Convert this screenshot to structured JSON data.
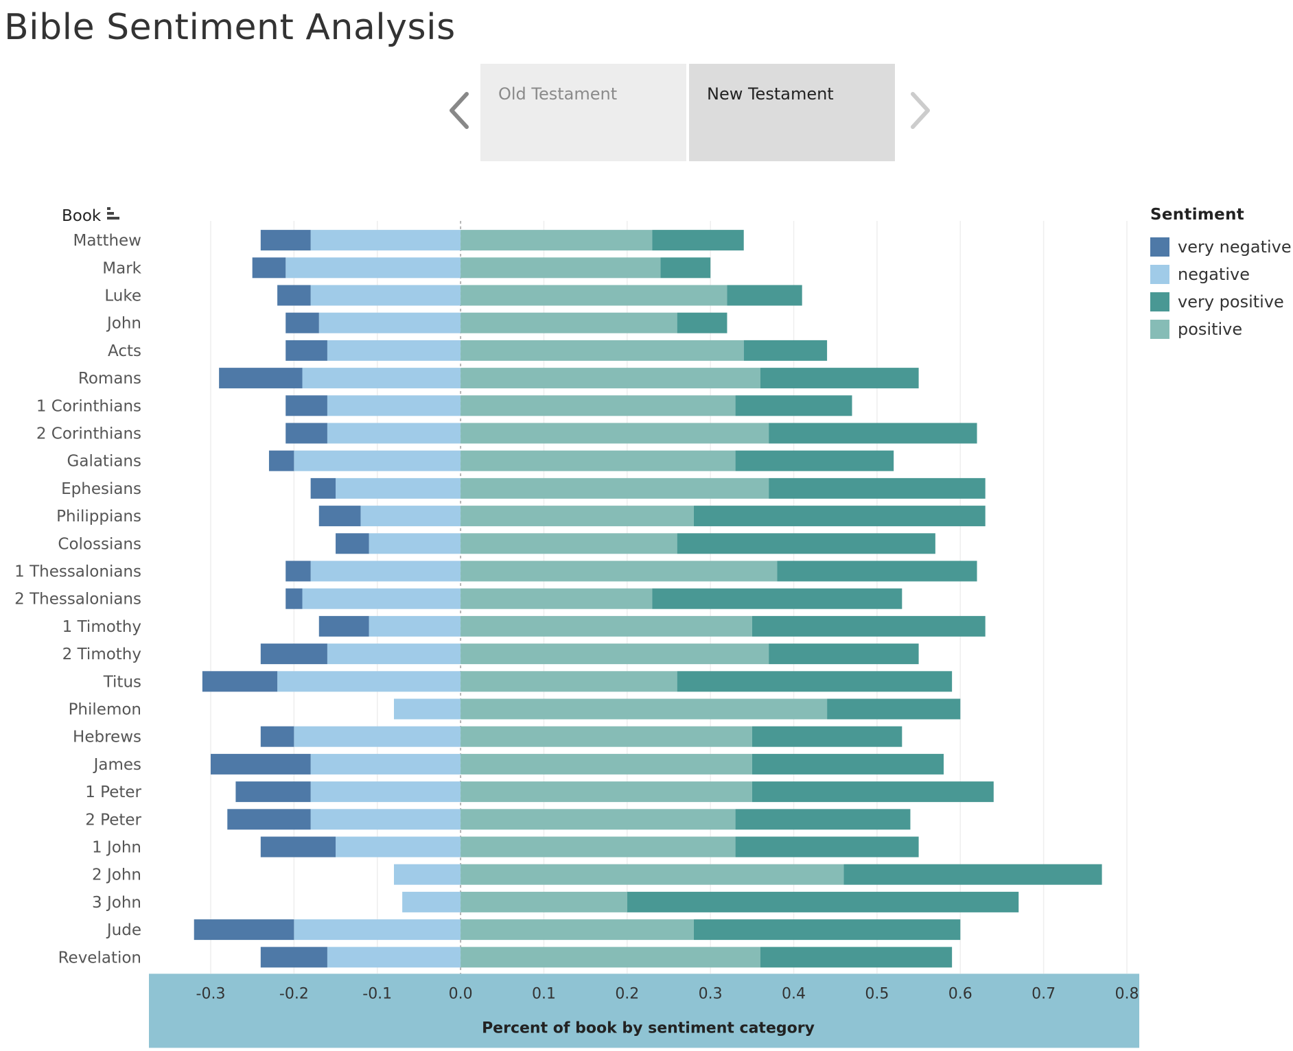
{
  "page": {
    "title": "Bible Sentiment Analysis"
  },
  "tabs": {
    "prev_icon": "chevron-left-icon",
    "next_icon": "chevron-right-icon",
    "items": [
      {
        "label": "Old Testament",
        "selected": false
      },
      {
        "label": "New Testament",
        "selected": true
      }
    ]
  },
  "legend": {
    "title": "Sentiment",
    "items": [
      {
        "label": "very negative",
        "color": "#4e79a7"
      },
      {
        "label": "negative",
        "color": "#a0cbe8"
      },
      {
        "label": "very positive",
        "color": "#499894"
      },
      {
        "label": "positive",
        "color": "#86bcb6"
      }
    ]
  },
  "chart_data": {
    "type": "bar",
    "orientation": "horizontal",
    "stacked": "diverging",
    "title": "",
    "ylabel": "Book",
    "xlabel": "Percent of book by sentiment category",
    "xlim": [
      -0.3,
      0.8
    ],
    "xticks": [
      "-0.3",
      "-0.2",
      "-0.1",
      "0.0",
      "0.1",
      "0.2",
      "0.3",
      "0.4",
      "0.5",
      "0.6",
      "0.7",
      "0.8"
    ],
    "grid": true,
    "legend_position": "right",
    "categories": [
      "Matthew",
      "Mark",
      "Luke",
      "John",
      "Acts",
      "Romans",
      "1 Corinthians",
      "2 Corinthians",
      "Galatians",
      "Ephesians",
      "Philippians",
      "Colossians",
      "1 Thessalonians",
      "2 Thessalonians",
      "1 Timothy",
      "2 Timothy",
      "Titus",
      "Philemon",
      "Hebrews",
      "James",
      "1 Peter",
      "2 Peter",
      "1 John",
      "2 John",
      "3 John",
      "Jude",
      "Revelation"
    ],
    "series": [
      {
        "name": "negative",
        "color": "#a0cbe8",
        "values": [
          -0.18,
          -0.21,
          -0.18,
          -0.17,
          -0.16,
          -0.19,
          -0.16,
          -0.16,
          -0.2,
          -0.15,
          -0.12,
          -0.11,
          -0.18,
          -0.19,
          -0.11,
          -0.16,
          -0.22,
          -0.08,
          -0.2,
          -0.18,
          -0.18,
          -0.18,
          -0.15,
          -0.08,
          -0.07,
          -0.2,
          -0.16
        ]
      },
      {
        "name": "very negative",
        "color": "#4e79a7",
        "values": [
          -0.06,
          -0.04,
          -0.04,
          -0.04,
          -0.05,
          -0.1,
          -0.05,
          -0.05,
          -0.03,
          -0.03,
          -0.05,
          -0.04,
          -0.03,
          -0.02,
          -0.06,
          -0.08,
          -0.09,
          0.0,
          -0.04,
          -0.12,
          -0.09,
          -0.1,
          -0.09,
          0.0,
          0.0,
          -0.12,
          -0.08
        ]
      },
      {
        "name": "positive",
        "color": "#86bcb6",
        "values": [
          0.23,
          0.24,
          0.32,
          0.26,
          0.34,
          0.36,
          0.33,
          0.37,
          0.33,
          0.37,
          0.28,
          0.26,
          0.38,
          0.23,
          0.35,
          0.37,
          0.26,
          0.44,
          0.35,
          0.35,
          0.35,
          0.33,
          0.33,
          0.46,
          0.2,
          0.28,
          0.36
        ]
      },
      {
        "name": "very positive",
        "color": "#499894",
        "values": [
          0.11,
          0.06,
          0.09,
          0.06,
          0.1,
          0.19,
          0.14,
          0.25,
          0.19,
          0.26,
          0.35,
          0.31,
          0.24,
          0.3,
          0.28,
          0.18,
          0.33,
          0.16,
          0.18,
          0.23,
          0.29,
          0.21,
          0.22,
          0.31,
          0.47,
          0.32,
          0.23
        ]
      }
    ]
  }
}
